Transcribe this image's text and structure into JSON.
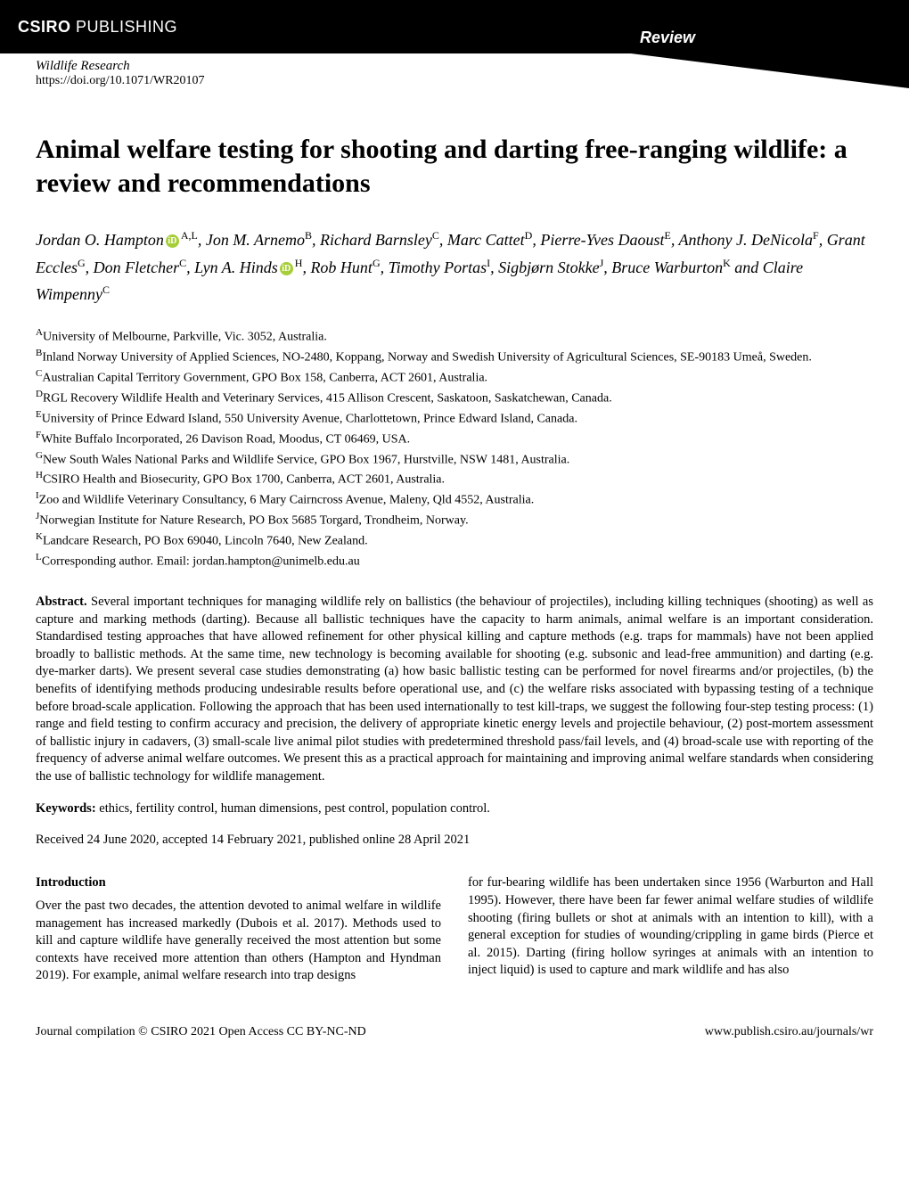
{
  "header": {
    "publisher_main": "CSIRO",
    "publisher_sub": "PUBLISHING",
    "badge": "Review"
  },
  "journal": {
    "name": "Wildlife Research",
    "doi": "https://doi.org/10.1071/WR20107"
  },
  "title": "Animal welfare testing for shooting and darting free-ranging wildlife: a review and recommendations",
  "authors": {
    "a1": {
      "name": "Jordan O. Hampton",
      "sup": "A,L",
      "orcid": true
    },
    "a2": {
      "name": "Jon M. Arnemo",
      "sup": "B"
    },
    "a3": {
      "name": "Richard Barnsley",
      "sup": "C"
    },
    "a4": {
      "name": "Marc Cattet",
      "sup": "D"
    },
    "a5": {
      "name": "Pierre-Yves Daoust",
      "sup": "E"
    },
    "a6": {
      "name": "Anthony J. DeNicola",
      "sup": "F"
    },
    "a7": {
      "name": "Grant Eccles",
      "sup": "G"
    },
    "a8": {
      "name": "Don Fletcher",
      "sup": "C"
    },
    "a9": {
      "name": "Lyn A. Hinds",
      "sup": "H",
      "orcid": true
    },
    "a10": {
      "name": "Rob Hunt",
      "sup": "G"
    },
    "a11": {
      "name": "Timothy Portas",
      "sup": "I"
    },
    "a12": {
      "name": "Sigbjørn Stokke",
      "sup": "J"
    },
    "a13": {
      "name": "Bruce Warburton",
      "sup": "K"
    },
    "a14": {
      "name": "Claire Wimpenny",
      "sup": "C"
    }
  },
  "affiliations": {
    "A": "University of Melbourne, Parkville, Vic. 3052, Australia.",
    "B": "Inland Norway University of Applied Sciences, NO-2480, Koppang, Norway and Swedish University of Agricultural Sciences, SE-90183 Umeå, Sweden.",
    "C": "Australian Capital Territory Government, GPO Box 158, Canberra, ACT 2601, Australia.",
    "D": "RGL Recovery Wildlife Health and Veterinary Services, 415 Allison Crescent, Saskatoon, Saskatchewan, Canada.",
    "E": "University of Prince Edward Island, 550 University Avenue, Charlottetown, Prince Edward Island, Canada.",
    "F": "White Buffalo Incorporated, 26 Davison Road, Moodus, CT 06469, USA.",
    "G": "New South Wales National Parks and Wildlife Service, GPO Box 1967, Hurstville, NSW 1481, Australia.",
    "H": "CSIRO Health and Biosecurity, GPO Box 1700, Canberra, ACT 2601, Australia.",
    "I": "Zoo and Wildlife Veterinary Consultancy, 6 Mary Cairncross Avenue, Maleny, Qld 4552, Australia.",
    "J": "Norwegian Institute for Nature Research, PO Box 5685 Torgard, Trondheim, Norway.",
    "K": "Landcare Research, PO Box 69040, Lincoln 7640, New Zealand.",
    "L": "Corresponding author. Email: jordan.hampton@unimelb.edu.au"
  },
  "abstract": {
    "label": "Abstract.",
    "text": "Several important techniques for managing wildlife rely on ballistics (the behaviour of projectiles), including killing techniques (shooting) as well as capture and marking methods (darting). Because all ballistic techniques have the capacity to harm animals, animal welfare is an important consideration. Standardised testing approaches that have allowed refinement for other physical killing and capture methods (e.g. traps for mammals) have not been applied broadly to ballistic methods. At the same time, new technology is becoming available for shooting (e.g. subsonic and lead-free ammunition) and darting (e.g. dye-marker darts). We present several case studies demonstrating (a) how basic ballistic testing can be performed for novel firearms and/or projectiles, (b) the benefits of identifying methods producing undesirable results before operational use, and (c) the welfare risks associated with bypassing testing of a technique before broad-scale application. Following the approach that has been used internationally to test kill-traps, we suggest the following four-step testing process: (1) range and field testing to confirm accuracy and precision, the delivery of appropriate kinetic energy levels and projectile behaviour, (2) post-mortem assessment of ballistic injury in cadavers, (3) small-scale live animal pilot studies with predetermined threshold pass/fail levels, and (4) broad-scale use with reporting of the frequency of adverse animal welfare outcomes. We present this as a practical approach for maintaining and improving animal welfare standards when considering the use of ballistic technology for wildlife management."
  },
  "keywords": {
    "label": "Keywords:",
    "text": "ethics, fertility control, human dimensions, pest control, population control."
  },
  "dates": "Received 24 June 2020, accepted 14 February 2021, published online 28 April 2021",
  "intro": {
    "heading": "Introduction",
    "left": "Over the past two decades, the attention devoted to animal welfare in wildlife management has increased markedly (Dubois et al. 2017). Methods used to kill and capture wildlife have generally received the most attention but some contexts have received more attention than others (Hampton and Hyndman 2019). For example, animal welfare research into trap designs",
    "right": "for fur-bearing wildlife has been undertaken since 1956 (Warburton and Hall 1995). However, there have been far fewer animal welfare studies of wildlife shooting (firing bullets or shot at animals with an intention to kill), with a general exception for studies of wounding/crippling in game birds (Pierce et al. 2015). Darting (firing hollow syringes at animals with an intention to inject liquid) is used to capture and mark wildlife and has also"
  },
  "footer": {
    "left": "Journal compilation © CSIRO 2021 Open Access CC BY-NC-ND",
    "right": "www.publish.csiro.au/journals/wr"
  },
  "colors": {
    "black": "#000000",
    "white": "#ffffff",
    "orcid": "#a6ce39"
  }
}
